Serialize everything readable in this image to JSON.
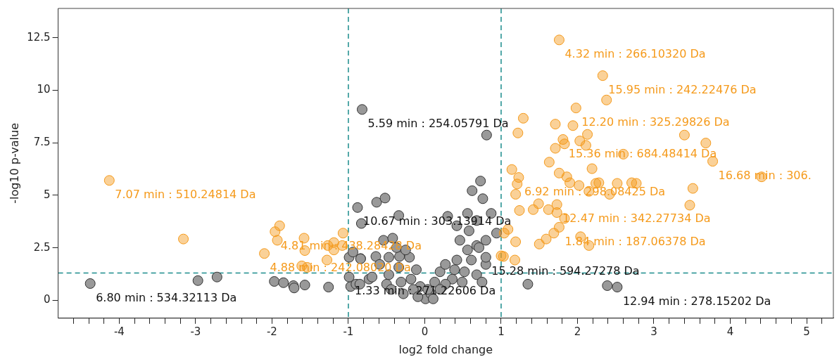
{
  "chart_data": {
    "type": "scatter",
    "xlabel": "log2 fold change",
    "ylabel": "-log10 p-value",
    "marker": "circle",
    "grid": false,
    "legend": false,
    "xlim": [
      -4.8,
      5.35
    ],
    "ylim": [
      -0.85,
      13.9
    ],
    "xticks": [
      {
        "value": -4.6,
        "label": null
      },
      {
        "value": -4.4,
        "label": null
      },
      {
        "value": -4.2,
        "label": null
      },
      -4,
      {
        "value": -3.8,
        "label": null
      },
      {
        "value": -3.6,
        "label": null
      },
      {
        "value": -3.4,
        "label": null
      },
      {
        "value": -3.2,
        "label": null
      },
      -3,
      {
        "value": -2.8,
        "label": null
      },
      {
        "value": -2.6,
        "label": null
      },
      {
        "value": -2.4,
        "label": null
      },
      {
        "value": -2.2,
        "label": null
      },
      -2,
      {
        "value": -1.8,
        "label": null
      },
      {
        "value": -1.6,
        "label": null
      },
      {
        "value": -1.4,
        "label": null
      },
      {
        "value": -1.2,
        "label": null
      },
      -1,
      {
        "value": -0.8,
        "label": null
      },
      {
        "value": -0.6,
        "label": null
      },
      {
        "value": -0.4,
        "label": null
      },
      {
        "value": -0.2,
        "label": null
      },
      0,
      {
        "value": 0.2,
        "label": null
      },
      {
        "value": 0.4,
        "label": null
      },
      {
        "value": 0.6,
        "label": null
      },
      {
        "value": 0.8,
        "label": null
      },
      1,
      {
        "value": 1.2,
        "label": null
      },
      {
        "value": 1.4,
        "label": null
      },
      {
        "value": 1.6,
        "label": null
      },
      {
        "value": 1.8,
        "label": null
      },
      2,
      {
        "value": 2.2,
        "label": null
      },
      {
        "value": 2.4,
        "label": null
      },
      {
        "value": 2.6,
        "label": null
      },
      {
        "value": 2.8,
        "label": null
      },
      3,
      {
        "value": 3.2,
        "label": null
      },
      {
        "value": 3.4,
        "label": null
      },
      {
        "value": 3.6,
        "label": null
      },
      {
        "value": 3.8,
        "label": null
      },
      4,
      {
        "value": 4.2,
        "label": null
      },
      {
        "value": 4.4,
        "label": null
      },
      {
        "value": 4.6,
        "label": null
      },
      {
        "value": 4.8,
        "label": null
      },
      5,
      {
        "value": 5.2,
        "label": null
      }
    ],
    "yticks": [
      0,
      2.5,
      5,
      7.5,
      10,
      12.5
    ],
    "ref_lines": [
      {
        "axis": "x",
        "value": -1,
        "label": null,
        "color": "#1a8c8c",
        "line_style": "dashed"
      },
      {
        "axis": "x",
        "value": 1,
        "label": null,
        "color": "#1a8c8c",
        "line_style": "dashed"
      },
      {
        "axis": "y",
        "value": 1.3,
        "label": null,
        "color": "#1a8c8c",
        "line_style": "dashed"
      }
    ],
    "series": [
      {
        "color": "#999999",
        "x": [
          -4.38,
          -2.97,
          -2.72,
          -1.97,
          -1.85,
          -1.72,
          -1.71,
          -1.57,
          -1.26,
          -0.97,
          -0.99,
          -0.9,
          -0.99,
          -0.84,
          -0.88,
          -0.83,
          -0.63,
          -0.52,
          0.73,
          0.62,
          0.76,
          -0.34,
          -0.94,
          -0.84,
          -0.54,
          -0.42,
          -0.64,
          -0.47,
          -0.33,
          -0.2,
          -0.37,
          -0.25,
          -0.59,
          -0.73,
          -0.47,
          -0.31,
          -0.18,
          -0.06,
          0.01,
          0.08,
          0.13,
          0.2,
          0.27,
          0.3,
          0.42,
          0.56,
          0.68,
          0.87,
          0.94,
          0.8,
          0.68,
          0.56,
          0.42,
          0.61,
          0.8,
          0.68,
          0.52,
          0.36,
          0.49,
          0.27,
          0.75,
          1.35,
          -0.5,
          -0.85,
          -0.34,
          -0.11,
          0.04,
          -0.15,
          0.2,
          -0.09,
          0.11,
          -0.28,
          -0.44,
          -0.69,
          0.39,
          0.46,
          0.58,
          0.71,
          -0.82,
          0.81,
          2.39,
          2.52,
          0.8
        ],
        "values": [
          0.8,
          0.94,
          1.11,
          0.9,
          0.84,
          0.7,
          0.59,
          0.73,
          0.63,
          0.66,
          1.11,
          0.77,
          2.05,
          1.99,
          4.42,
          3.66,
          4.67,
          4.87,
          5.68,
          5.22,
          4.84,
          4.04,
          2.3,
          1.98,
          2.86,
          2.96,
          2.09,
          2.05,
          2.09,
          2.05,
          2.51,
          2.4,
          1.71,
          1.01,
          1.22,
          0.87,
          1.01,
          0.66,
          0.07,
          0.31,
          0.87,
          1.36,
          1.71,
          4.0,
          3.55,
          4.14,
          3.8,
          4.14,
          3.2,
          2.86,
          2.61,
          2.4,
          1.92,
          1.92,
          1.71,
          1.22,
          1.36,
          1.01,
          0.87,
          0.77,
          0.87,
          0.77,
          0.77,
          0.77,
          1.57,
          1.46,
          0.52,
          0.52,
          0.52,
          0.17,
          0.07,
          0.31,
          0.52,
          1.11,
          1.46,
          2.86,
          3.31,
          2.51,
          9.09,
          7.87,
          0.7,
          0.63,
          2.05
        ]
      },
      {
        "color": "#f59a1b",
        "x": [
          1.76,
          2.33,
          2.38,
          1.98,
          1.29,
          1.71,
          1.94,
          1.22,
          2.13,
          1.81,
          1.83,
          2.03,
          2.11,
          1.71,
          3.4,
          3.68,
          2.6,
          3.77,
          1.63,
          2.19,
          1.14,
          1.76,
          1.86,
          1.23,
          1.9,
          2.02,
          2.15,
          2.24,
          2.28,
          1.21,
          1.19,
          2.52,
          2.42,
          2.71,
          2.77,
          3.51,
          3.47,
          4.41,
          1.49,
          1.73,
          1.24,
          1.42,
          1.62,
          1.73,
          1.83,
          1.76,
          1.69,
          1.59,
          1.5,
          1.09,
          1.19,
          1.04,
          1.03,
          1.18,
          1.0,
          2.04,
          2.15,
          -4.13,
          -3.16,
          -1.96,
          -1.9,
          -1.93,
          -2.1,
          -1.58,
          -1.57,
          -1.61,
          -1.54,
          -1.27,
          -1.19,
          -1.28,
          -1.07,
          -1.08,
          -1.19
        ],
        "values": [
          12.4,
          10.7,
          9.54,
          9.16,
          8.67,
          8.39,
          8.32,
          7.97,
          7.9,
          7.66,
          7.45,
          7.59,
          7.38,
          7.24,
          7.87,
          7.49,
          6.96,
          6.62,
          6.58,
          6.27,
          6.23,
          6.06,
          5.88,
          5.85,
          5.6,
          5.47,
          5.19,
          5.57,
          5.6,
          5.54,
          5.05,
          5.57,
          5.05,
          5.6,
          5.57,
          5.33,
          4.53,
          5.88,
          4.6,
          4.56,
          4.28,
          4.32,
          4.32,
          4.18,
          3.9,
          3.48,
          3.2,
          2.92,
          2.68,
          3.38,
          2.79,
          3.2,
          2.09,
          1.92,
          2.12,
          3.03,
          2.61,
          5.71,
          2.92,
          3.27,
          3.55,
          2.86,
          2.23,
          2.96,
          2.37,
          1.64,
          1.57,
          2.61,
          2.4,
          1.92,
          3.2,
          2.61,
          2.75
        ]
      }
    ],
    "annotations": [
      {
        "text": "4.32 min : 266.10320 Da",
        "x": 1.76,
        "y": 12.4
      },
      {
        "text": "15.95 min : 242.22476 Da",
        "x": 2.33,
        "y": 10.7
      },
      {
        "text": "5.59 min : 254.05791 Da",
        "x": -0.82,
        "y": 9.09
      },
      {
        "text": "12.20 min : 325.29826 Da",
        "x": 1.98,
        "y": 9.16
      },
      {
        "text": "15.36 min : 684.48414 Da",
        "x": 1.81,
        "y": 7.66
      },
      {
        "text": "16.68 min : 306.",
        "x": 3.77,
        "y": 6.62
      },
      {
        "text": "7.07 min : 510.24814 Da",
        "x": -4.13,
        "y": 5.71
      },
      {
        "text": "6.92 min : 298.08425 Da",
        "x": 1.23,
        "y": 5.85
      },
      {
        "text": "10.67 min : 303.13914 Da",
        "x": -0.88,
        "y": 4.42
      },
      {
        "text": "12.47 min : 342.27734 Da",
        "x": 1.73,
        "y": 4.56
      },
      {
        "text": "4.81 min : 438.28428 Da",
        "x": -1.96,
        "y": 3.27
      },
      {
        "text": "1.84 min : 187.06378 Da",
        "x": 1.76,
        "y": 3.48
      },
      {
        "text": "4.88 min : 242.08020 Da",
        "x": -2.1,
        "y": 2.23
      },
      {
        "text": "15.28 min : 594.27278 Da",
        "x": 0.8,
        "y": 2.05
      },
      {
        "text": "1.33 min : 271.22606 Da",
        "x": -0.99,
        "y": 1.11
      },
      {
        "text": "6.80 min : 534.32113 Da",
        "x": -4.38,
        "y": 0.8
      },
      {
        "text": "12.94 min : 278.15202 Da",
        "x": 2.52,
        "y": 0.63
      }
    ]
  }
}
